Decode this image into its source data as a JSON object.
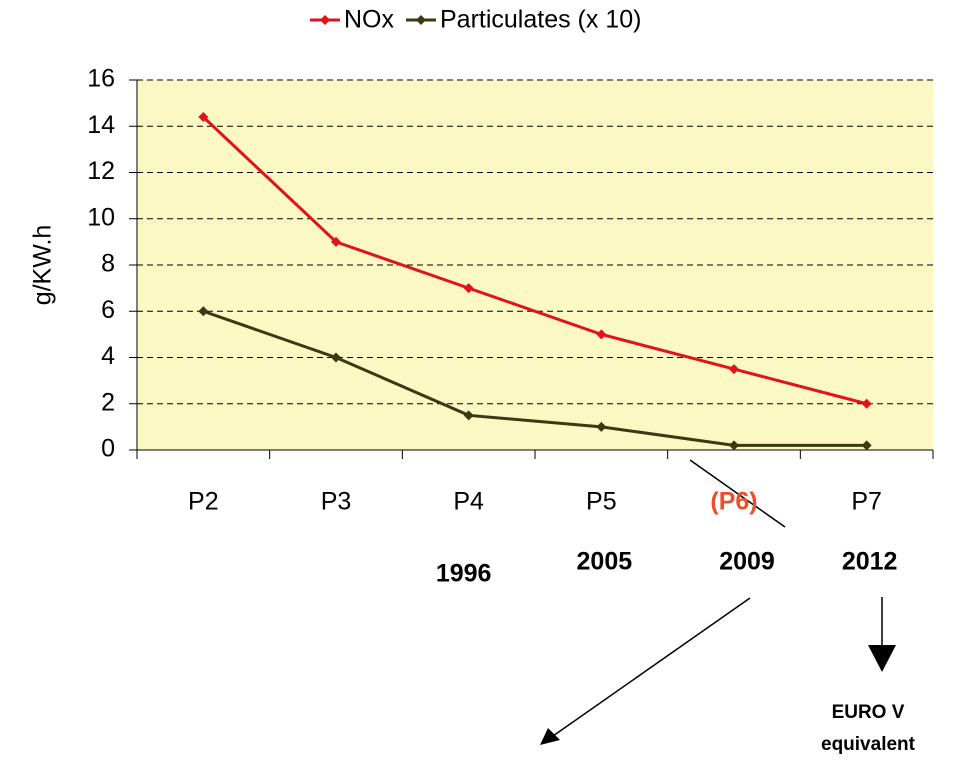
{
  "chart_data": {
    "type": "line",
    "ylabel": "g/KW.h",
    "categories": [
      "P2",
      "P3",
      "P4",
      "P5",
      "(P6)",
      "P7"
    ],
    "category_colors": [
      "#000000",
      "#000000",
      "#000000",
      "#000000",
      "#e8502a",
      "#000000"
    ],
    "years": [
      null,
      null,
      "1996",
      "2005",
      "2009",
      "2012"
    ],
    "series": [
      {
        "name": "NOx",
        "color": "#e3121a",
        "values": [
          14.4,
          9,
          7,
          5,
          3.5,
          2
        ]
      },
      {
        "name": "Particulates (x 10)",
        "color": "#3a3a12",
        "values": [
          6,
          4,
          1.5,
          1,
          0.2,
          0.2
        ]
      }
    ],
    "ylim": [
      0,
      16
    ],
    "yticks": [
      0,
      2,
      4,
      6,
      8,
      10,
      12,
      14,
      16
    ],
    "grid": true,
    "legend": "top",
    "plot_background": "#fbf8c4",
    "annotation": [
      "EURO V",
      "equivalent"
    ]
  }
}
